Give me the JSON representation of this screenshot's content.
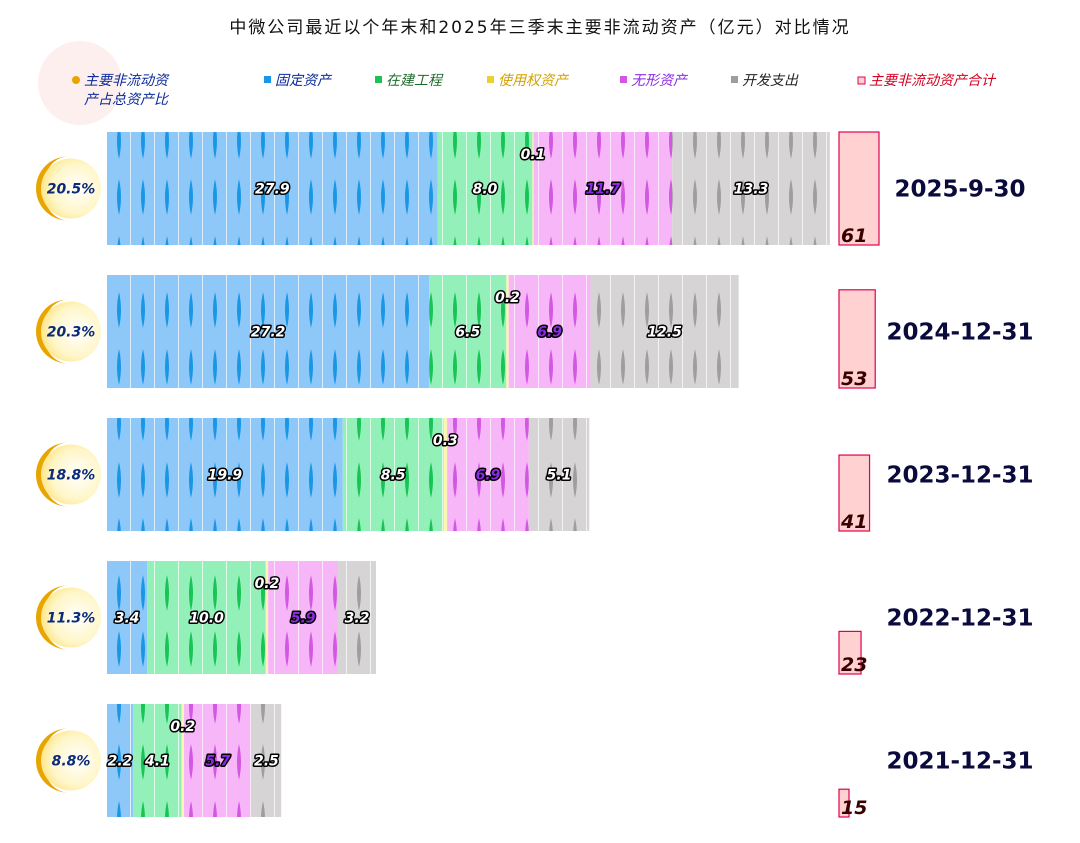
{
  "chart_data": {
    "type": "bar",
    "orientation": "horizontal",
    "stacked": true,
    "title": "中微公司最近以个年末和2025年三季末主要非流动资产（亿元）对比情况",
    "unit": "亿元",
    "categories": [
      "2025-9-30",
      "2024-12-31",
      "2023-12-31",
      "2022-12-31",
      "2021-12-31"
    ],
    "series": [
      {
        "name": "固定资产",
        "color": "#8ec8f8",
        "accent": "#1a96e6",
        "label_color": "#ffffff",
        "values": [
          27.9,
          27.2,
          19.9,
          3.4,
          2.2
        ]
      },
      {
        "name": "在建工程",
        "color": "#93f0b8",
        "accent": "#17c455",
        "label_color": "#ffffff",
        "values": [
          8.0,
          6.5,
          8.5,
          10.0,
          4.1
        ]
      },
      {
        "name": "使用权资产",
        "color": "#fbf6b4",
        "accent": "#e8d230",
        "label_color": "#ffffff",
        "values": [
          0.1,
          0.2,
          0.3,
          0.2,
          0.2
        ]
      },
      {
        "name": "无形资产",
        "color": "#f7b6f7",
        "accent": "#d257e2",
        "label_color": "#8a2be2",
        "values": [
          11.7,
          6.9,
          6.9,
          5.9,
          5.7
        ]
      },
      {
        "name": "开发支出",
        "color": "#d6d4d4",
        "accent": "#9f9d9d",
        "label_color": "#ffffff",
        "values": [
          13.3,
          12.5,
          5.1,
          3.2,
          2.5
        ]
      }
    ],
    "ratio": {
      "name": "主要非流动资产占总资产比",
      "color": "#e8a500",
      "values_display": [
        "20.5%",
        "20.3%",
        "18.8%",
        "11.3%",
        "8.8%"
      ]
    },
    "totals": {
      "name": "主要非流动资产合计",
      "color": "#ffd1d1",
      "border": "#e00050",
      "values": [
        61,
        53,
        41,
        23,
        15
      ]
    },
    "grid": false,
    "legend_position": "top"
  }
}
